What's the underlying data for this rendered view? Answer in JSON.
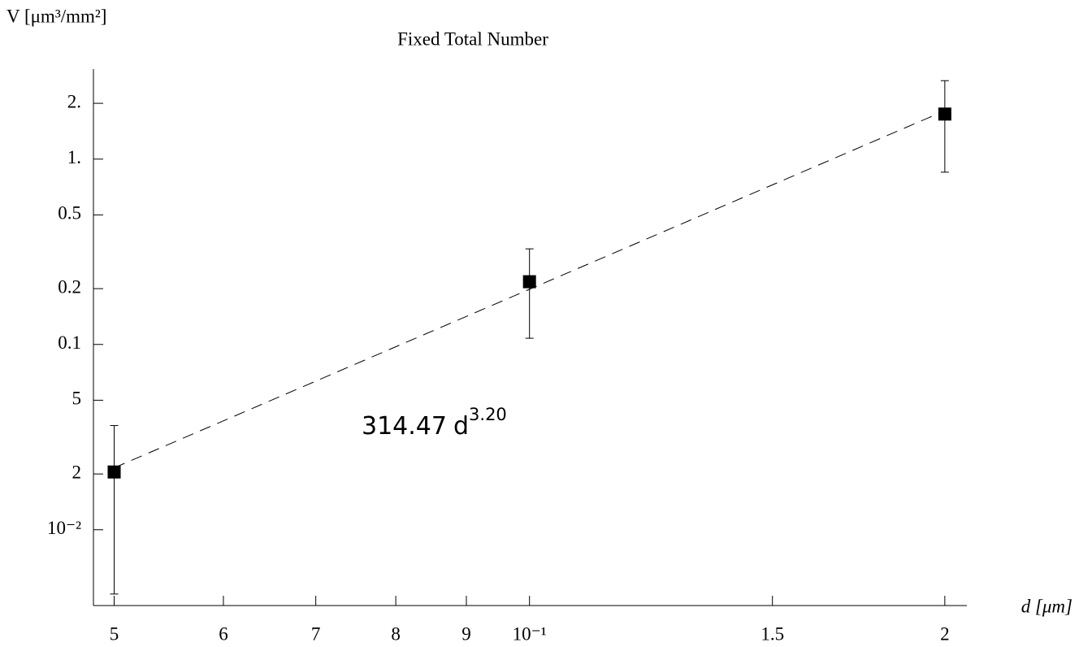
{
  "chart_data": {
    "type": "scatter",
    "title": "Fixed Total Number",
    "y_label": "V [μm³/mm²]",
    "x_label": "d [μm]",
    "x": [
      0.05,
      0.1,
      0.2
    ],
    "values": [
      0.0205,
      0.218,
      1.75
    ],
    "errors": [
      0.016,
      0.11,
      0.9
    ],
    "color": "#000000",
    "fit": {
      "coefficient": 314.47,
      "variable": "d",
      "exponent": {
        "value": 3.2,
        "label": "3.20"
      }
    },
    "log_x": true,
    "log_y": true,
    "xlim": [
      0.0483,
      0.2075
    ],
    "ylim": [
      0.0039,
      3.06
    ],
    "xticks": [
      {
        "value": 0.05,
        "label": "5"
      },
      {
        "value": 0.06,
        "label": "6"
      },
      {
        "value": 0.07,
        "label": "7"
      },
      {
        "value": 0.08,
        "label": "8"
      },
      {
        "value": 0.09,
        "label": "9"
      },
      {
        "value": 0.1,
        "label": "10⁻¹"
      },
      {
        "value": 0.15,
        "label": "1.5"
      },
      {
        "value": 0.2,
        "label": "2"
      }
    ],
    "yticks": [
      {
        "value": 0.01,
        "label": "10⁻²"
      },
      {
        "value": 0.02,
        "label": "2"
      },
      {
        "value": 0.05,
        "label": "5"
      },
      0.1,
      0.2,
      0.5,
      {
        "value": 1,
        "label": "1."
      },
      {
        "value": 2,
        "label": "2."
      }
    ]
  }
}
